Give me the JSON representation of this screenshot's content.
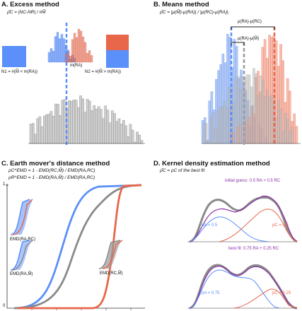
{
  "panels": {
    "a": {
      "title": "A. Excess method",
      "formula": "ρ̂C = |NC-NR| / #M̃",
      "median_label": "m(RA)",
      "n1_label": "N1 = #(M̃ < m(RA))",
      "n2_label": "N2 = #(M̃ > m(RA))"
    },
    "b": {
      "title": "B. Means method",
      "formula": "ρ̂C = |μ(M̃)-μ(RA)| / |μ(RC)-μ(RA)|",
      "bracket_top": "μ(RA)-μ(RC)",
      "bracket_mid": "μ(RA)-μ(M̃)"
    },
    "c": {
      "title": "C. Earth mover's distance method",
      "formula_1": "ρC^EMD = 1 - EMD(RC,M̃) / EMD(RA,RC)",
      "formula_2": "ρR^EMD = 1 - EMD(RA,M̃) / EMD(RA,RC)",
      "y_top": "1",
      "y_bottom": "0",
      "inset_1": "EMD(RA,RC)",
      "inset_2": "EMD(RA,M̃)",
      "inset_3": "EMD(RC,M̃)"
    },
    "d": {
      "title": "D. Kernel density estimation method",
      "formula": "ρ̂C = ρC of the best fit",
      "initial_guess": "initial guess:  0.5 RA + 0.5 RC",
      "pa_top": "pA = 0.5",
      "pc_top": "pC = 0.5",
      "best_fit": "best fit: 0.75 RA + 0.25 RC",
      "pa_bottom": "pA = 0.75",
      "pc_bottom": "pC = 0.25"
    }
  },
  "colors": {
    "blue": "#5b8ff9",
    "red": "#e8674b",
    "gray": "#9a9a9a",
    "purple": "#8b2fa8"
  }
}
